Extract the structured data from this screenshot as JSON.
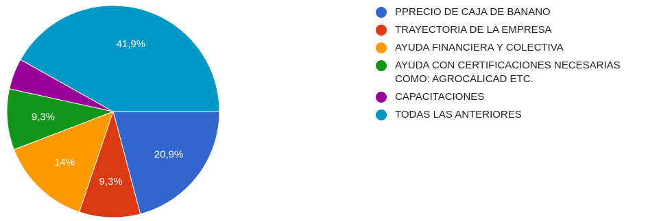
{
  "chart_data": {
    "type": "pie",
    "title": "",
    "slices": [
      {
        "label": "PPRECIO DE CAJA DE BANANO",
        "value": 20.9,
        "display": "20,9%",
        "color": "#3366cc"
      },
      {
        "label": "TRAYECTORIA DE LA EMPRESA",
        "value": 9.3,
        "display": "9,3%",
        "color": "#dc3912"
      },
      {
        "label": "AYUDA FINANCIERA Y COLECTIVA",
        "value": 14.0,
        "display": "14%",
        "color": "#ff9900"
      },
      {
        "label": "AYUDA CON CERTIFICACIONES NECESARIAS COMO: AGROCALICAD ETC.",
        "value": 9.3,
        "display": "9,3%",
        "color": "#109618"
      },
      {
        "label": "CAPACITACIONES",
        "value": 4.7,
        "display": "",
        "color": "#990099"
      },
      {
        "label": "TODAS LAS ANTERIORES",
        "value": 41.9,
        "display": "41,9%",
        "color": "#0099c6"
      }
    ],
    "legend_position": "right"
  }
}
